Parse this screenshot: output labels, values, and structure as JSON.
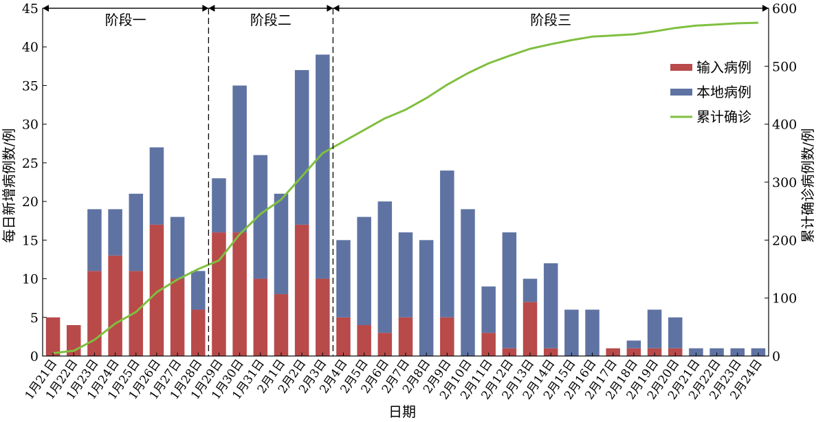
{
  "chart_data": {
    "type": "bar",
    "stacked": true,
    "xlabel": "日期",
    "ylabel_left": "每日新增病例数/例",
    "ylabel_right": "累计确诊病例数/例",
    "ylim_left": [
      0,
      45
    ],
    "ylim_right": [
      0,
      600
    ],
    "yticks_left": [
      0,
      5,
      10,
      15,
      20,
      25,
      30,
      35,
      40,
      45
    ],
    "yticks_right": [
      0,
      100,
      200,
      300,
      400,
      500,
      600
    ],
    "categories": [
      "1月21日",
      "1月22日",
      "1月23日",
      "1月24日",
      "1月25日",
      "1月26日",
      "1月27日",
      "1月28日",
      "1月29日",
      "1月30日",
      "1月31日",
      "2月1日",
      "2月2日",
      "2月3日",
      "2月4日",
      "2月5日",
      "2月6日",
      "2月7日",
      "2月8日",
      "2月9日",
      "2月10日",
      "2月11日",
      "2月12日",
      "2月13日",
      "2月14日",
      "2月15日",
      "2月16日",
      "2月17日",
      "2月18日",
      "2月19日",
      "2月20日",
      "2月21日",
      "2月22日",
      "2月23日",
      "2月24日"
    ],
    "series": [
      {
        "name": "输入病例",
        "kind": "bar",
        "axis": "left",
        "color": "#b84a4a",
        "values": [
          5,
          4,
          11,
          13,
          11,
          17,
          10,
          6,
          16,
          16,
          10,
          8,
          17,
          10,
          5,
          4,
          3,
          5,
          0,
          5,
          0,
          3,
          1,
          7,
          1,
          0,
          0,
          1,
          1,
          1,
          1,
          0,
          0,
          0,
          0
        ]
      },
      {
        "name": "本地病例",
        "kind": "bar",
        "axis": "left",
        "color": "#5f73a3",
        "values": [
          0,
          0,
          8,
          6,
          10,
          10,
          8,
          5,
          7,
          19,
          16,
          13,
          20,
          29,
          10,
          14,
          17,
          11,
          15,
          19,
          19,
          6,
          15,
          3,
          11,
          6,
          6,
          0,
          1,
          5,
          4,
          1,
          1,
          1,
          1
        ]
      },
      {
        "name": "累计确诊",
        "kind": "line",
        "axis": "right",
        "color": "#7fbf3f",
        "values": [
          5,
          9,
          28,
          56,
          76,
          110,
          132,
          150,
          165,
          210,
          245,
          270,
          310,
          350,
          370,
          390,
          410,
          425,
          445,
          468,
          488,
          505,
          518,
          530,
          538,
          545,
          551,
          553,
          555,
          560,
          566,
          570,
          572,
          574,
          575
        ]
      }
    ],
    "stages": [
      {
        "label": "阶段一",
        "from": 0,
        "to": 7
      },
      {
        "label": "阶段二",
        "from": 8,
        "to": 13
      },
      {
        "label": "阶段三",
        "from": 14,
        "to": 34
      }
    ],
    "legend_position": "top-right"
  }
}
